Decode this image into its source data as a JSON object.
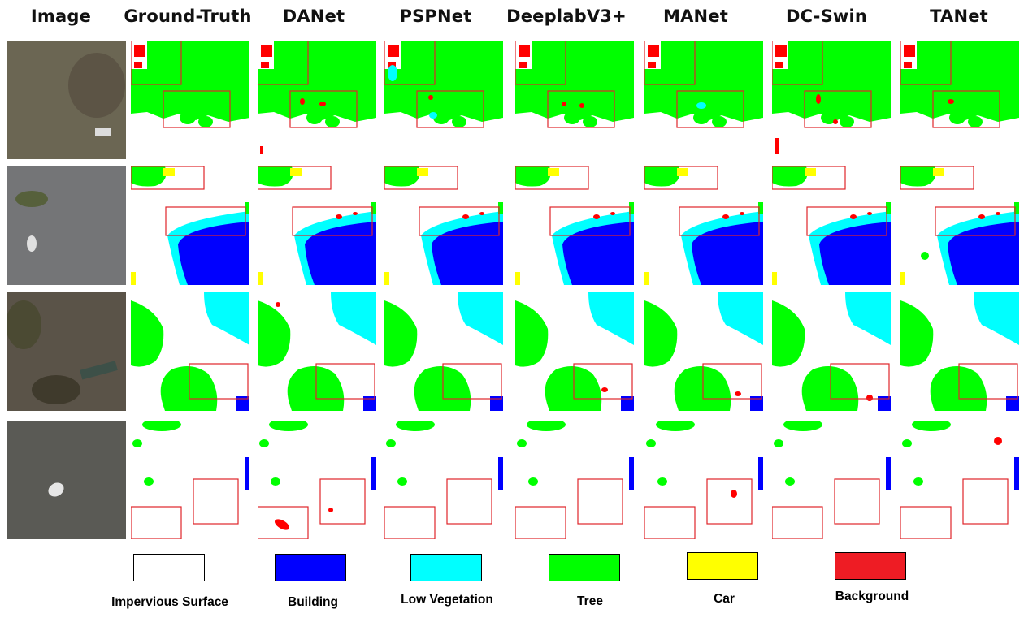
{
  "columns": [
    "Image",
    "Ground-Truth",
    "DANet",
    "PSPNet",
    "DeeplabV3+",
    "MANet",
    "DC-Swin",
    "TANet"
  ],
  "rows": [
    {
      "scene": "aerial-scene-1"
    },
    {
      "scene": "aerial-scene-2"
    },
    {
      "scene": "aerial-scene-3"
    },
    {
      "scene": "aerial-scene-4"
    }
  ],
  "legend": [
    {
      "label": "Impervious Surface",
      "color": "#ffffff"
    },
    {
      "label": "Building",
      "color": "#0000ff"
    },
    {
      "label": "Low Vegetation",
      "color": "#00ffff"
    },
    {
      "label": "Tree",
      "color": "#00ff00"
    },
    {
      "label": "Car",
      "color": "#ffff00"
    },
    {
      "label": "Background",
      "color": "#ff0000"
    }
  ],
  "highlight_color": "#e0242a"
}
